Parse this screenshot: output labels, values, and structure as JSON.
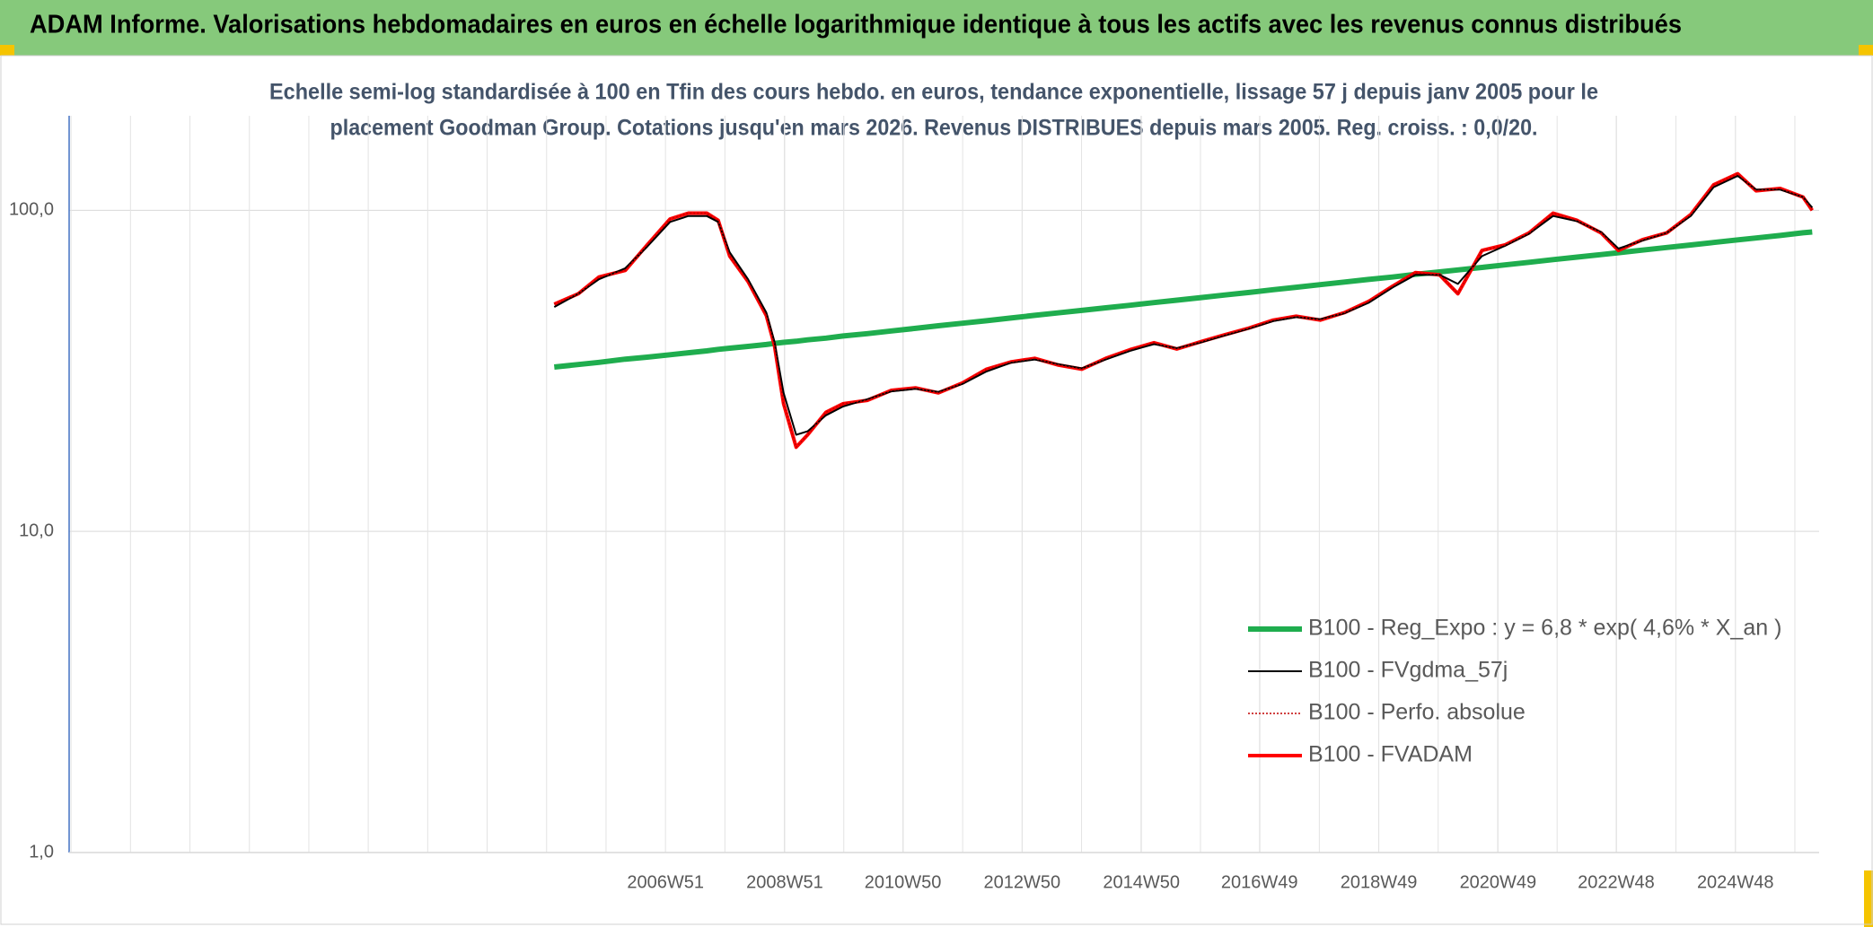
{
  "chart_data": {
    "type": "line",
    "title": "ADAM Informe. Valorisations hebdomadaires en euros en échelle logarithmique identique à tous les actifs avec les revenus connus distribués",
    "subtitle": [
      "Echelle semi-log standardisée à 100 en Tfin des cours hebdo. en euros, tendance exponentielle, lissage 57 j depuis janv 2005 pour le",
      "placement Goodman Group. Cotations jusqu'en mars 2026. Revenus DISTRIBUES depuis mars 2005. Reg. croiss. : 0,0/20."
    ],
    "x": [
      "2005W06",
      "2005W27",
      "2005W45",
      "2006W16",
      "2006W35",
      "2007W03",
      "2007W19",
      "2007W35",
      "2007W45",
      "2008W03",
      "2008W19",
      "2008W35",
      "2008W42",
      "2008W50",
      "2009W09",
      "2009W19",
      "2009W35",
      "2009W50",
      "2010W19",
      "2010W40",
      "2011W09",
      "2011W29",
      "2011W50",
      "2012W19",
      "2012W40",
      "2013W09",
      "2013W29",
      "2013W50",
      "2014W19",
      "2014W40",
      "2015W09",
      "2015W29",
      "2015W50",
      "2016W19",
      "2016W40",
      "2017W09",
      "2017W29",
      "2017W50",
      "2018W19",
      "2018W40",
      "2019W09",
      "2019W29",
      "2019W50",
      "2020W14",
      "2020W35",
      "2021W03",
      "2021W24",
      "2021W45",
      "2022W14",
      "2022W35",
      "2022W50",
      "2023W19",
      "2023W40",
      "2024W09",
      "2024W29",
      "2024W50",
      "2025W14",
      "2025W35",
      "2026W03",
      "2026W11"
    ],
    "xlim": [
      "1996W51",
      "2026W17"
    ],
    "xticks": [
      "2006W51",
      "2008W51",
      "2010W50",
      "2012W50",
      "2014W50",
      "2016W49",
      "2018W49",
      "2020W49",
      "2022W48",
      "2024W48"
    ],
    "ylim": [
      1,
      197
    ],
    "log_scale": true,
    "yticks": [
      {
        "value": 1,
        "label": "1,0"
      },
      {
        "value": 10,
        "label": "10,0"
      },
      {
        "value": 100,
        "label": "100,0"
      }
    ],
    "grid": true,
    "legend": "right",
    "series": [
      {
        "name": "B100 - Reg_Expo : y = 6,8 * exp( 4,6% *  X_an )",
        "color": "#1fad4e",
        "width": 6,
        "style": "solid",
        "values": [
          32.5,
          33.1,
          33.6,
          34.4,
          34.9,
          35.5,
          36.0,
          36.5,
          36.9,
          37.2,
          37.7,
          38.2,
          38.5,
          38.8,
          39.1,
          39.5,
          40.0,
          40.6,
          41.3,
          42.1,
          42.9,
          43.7,
          44.5,
          45.3,
          46.2,
          47.1,
          47.9,
          48.8,
          49.7,
          50.6,
          51.6,
          52.5,
          53.5,
          54.5,
          55.5,
          56.6,
          57.6,
          58.7,
          59.8,
          60.9,
          62.0,
          63.2,
          64.3,
          65.2,
          66.4,
          67.6,
          68.9,
          70.2,
          71.5,
          72.8,
          73.8,
          75.2,
          76.6,
          78.0,
          79.4,
          80.9,
          82.0,
          83.5,
          85.1,
          85.6
        ]
      },
      {
        "name": "B100 - FVgdma_57j",
        "color": "#000000",
        "width": 2,
        "style": "solid",
        "values": [
          50,
          55,
          61,
          66,
          77,
          92,
          96,
          96,
          92,
          74,
          61,
          48,
          39,
          27,
          20,
          20.5,
          23,
          24.5,
          25.8,
          27.3,
          27.8,
          27.2,
          28.8,
          31.5,
          33.5,
          34.3,
          33.2,
          32.2,
          34.3,
          36.5,
          38.3,
          37.2,
          38.8,
          40.8,
          42.8,
          45.2,
          46.5,
          45.8,
          47.8,
          51.5,
          57.5,
          63,
          63,
          59,
          72,
          77.5,
          84.5,
          96,
          92.5,
          85.5,
          76,
          80.5,
          85,
          96,
          118,
          128,
          116,
          116,
          110,
          102
        ]
      },
      {
        "name": "B100 - Perfo. absolue",
        "color": "#c00000",
        "width": 1.5,
        "style": "dotted",
        "values": [
          51,
          55,
          62,
          65,
          78,
          94,
          98,
          98,
          93,
          72,
          60,
          47,
          38,
          25,
          18.3,
          20,
          23.5,
          25,
          25.6,
          27.5,
          28,
          27,
          29,
          32,
          33.7,
          34.6,
          33,
          32,
          34.6,
          36.8,
          38.7,
          37,
          39,
          41,
          43,
          45.5,
          46.8,
          45.5,
          48,
          52,
          58,
          64,
          63,
          55,
          75,
          78,
          85,
          98,
          93,
          85,
          75,
          81,
          85,
          97,
          120,
          130,
          115,
          117,
          110,
          100
        ]
      },
      {
        "name": "B100 - FVADAM",
        "color": "#ff0000",
        "width": 4,
        "style": "solid",
        "values": [
          51,
          55,
          62,
          65,
          78,
          94,
          98,
          98,
          93,
          72,
          60,
          47,
          38,
          25,
          18.3,
          20,
          23.5,
          25,
          25.6,
          27.5,
          28,
          27,
          29,
          32,
          33.7,
          34.6,
          33,
          32,
          34.6,
          36.8,
          38.7,
          37,
          39,
          41,
          43,
          45.5,
          46.8,
          45.5,
          48,
          52,
          58,
          64,
          63,
          55,
          75,
          78,
          85,
          98,
          93,
          85,
          75,
          81,
          85,
          97,
          120,
          130,
          115,
          117,
          110,
          100
        ]
      }
    ]
  }
}
